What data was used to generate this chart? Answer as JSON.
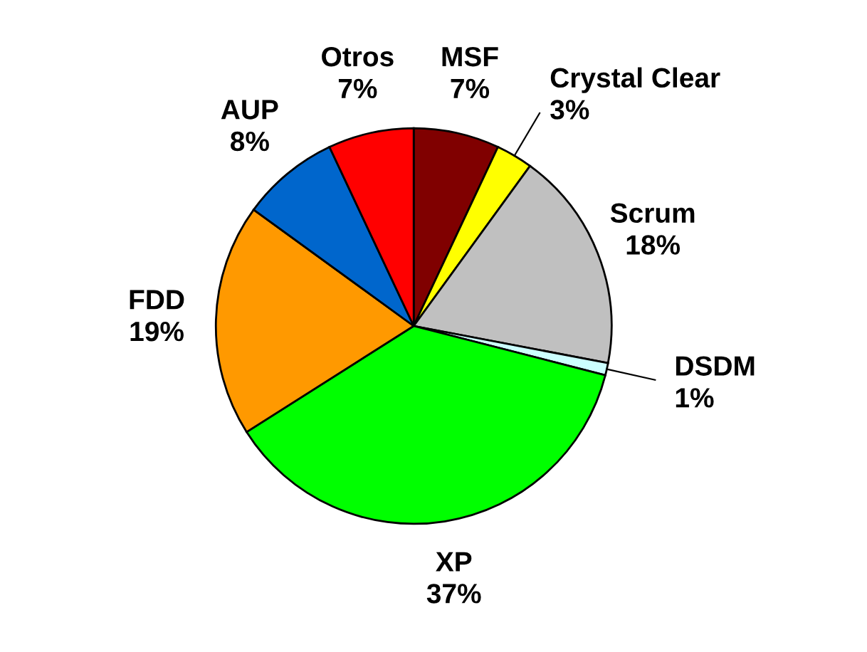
{
  "chart_data": {
    "type": "pie",
    "categories": [
      "MSF",
      "Crystal Clear",
      "Scrum",
      "DSDM",
      "XP",
      "FDD",
      "AUP",
      "Otros"
    ],
    "values": [
      7,
      3,
      18,
      1,
      37,
      19,
      8,
      7
    ],
    "value_labels": [
      "7%",
      "3%",
      "18%",
      "1%",
      "37%",
      "19%",
      "8%",
      "7%"
    ],
    "colors": [
      "#800000",
      "#ffff00",
      "#c0c0c0",
      "#ccffff",
      "#00ff00",
      "#ff9900",
      "#0066cc",
      "#ff0000"
    ],
    "legend": false
  }
}
